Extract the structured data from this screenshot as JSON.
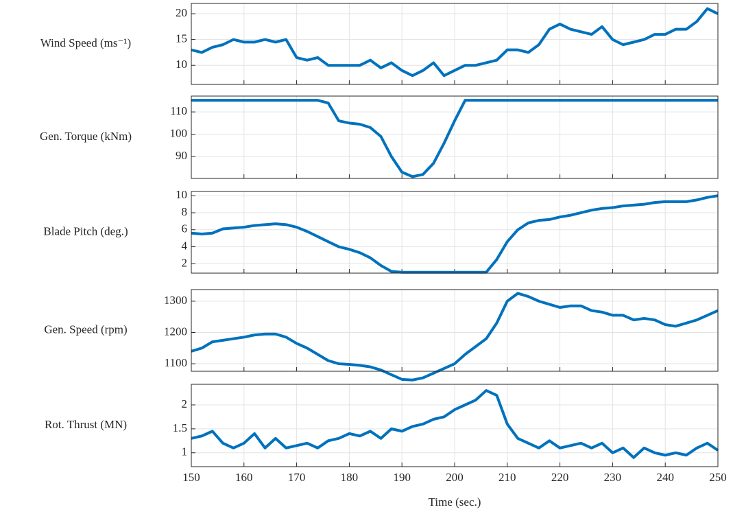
{
  "chart_data": [
    {
      "type": "line",
      "ylabel": "Wind Speed (ms⁻¹)",
      "color": "#0072BD",
      "grid": true,
      "xlim": [
        150,
        250
      ],
      "xticks": [
        150,
        160,
        170,
        180,
        190,
        200,
        210,
        220,
        230,
        240,
        250
      ],
      "ylim": [
        6.3,
        22
      ],
      "yticks": [
        10,
        15,
        20
      ],
      "x": [
        150,
        152,
        154,
        156,
        158,
        160,
        162,
        164,
        166,
        168,
        170,
        172,
        174,
        176,
        178,
        180,
        182,
        184,
        186,
        188,
        190,
        192,
        194,
        196,
        198,
        200,
        202,
        204,
        206,
        208,
        210,
        212,
        214,
        216,
        218,
        220,
        222,
        224,
        226,
        228,
        230,
        232,
        234,
        236,
        238,
        240,
        242,
        244,
        246,
        248,
        250
      ],
      "values": [
        13,
        12.5,
        13.5,
        14,
        15,
        14.5,
        14.5,
        15,
        14.5,
        15,
        11.5,
        11,
        11.5,
        10,
        10,
        10,
        10,
        11,
        9.5,
        10.5,
        9,
        8,
        9,
        10.5,
        8,
        9,
        10,
        10,
        10.5,
        11,
        13,
        13,
        12.5,
        14,
        17,
        18,
        17,
        16.5,
        16,
        17.5,
        15,
        14,
        14.5,
        15,
        16,
        16,
        17,
        17,
        18.5,
        21,
        20
      ]
    },
    {
      "type": "line",
      "ylabel": "Gen. Torque (kNm)",
      "color": "#0072BD",
      "grid": true,
      "xlim": [
        150,
        250
      ],
      "xticks": [
        150,
        160,
        170,
        180,
        190,
        200,
        210,
        220,
        230,
        240,
        250
      ],
      "ylim": [
        80.2,
        117.1
      ],
      "yticks": [
        90,
        100,
        110
      ],
      "x": [
        150,
        152,
        154,
        156,
        158,
        160,
        162,
        164,
        166,
        168,
        170,
        172,
        174,
        176,
        178,
        180,
        182,
        184,
        186,
        188,
        190,
        192,
        194,
        196,
        198,
        200,
        202,
        204,
        206,
        208,
        210,
        212,
        214,
        216,
        218,
        220,
        222,
        224,
        226,
        228,
        230,
        232,
        234,
        236,
        238,
        240,
        242,
        244,
        246,
        248,
        250
      ],
      "values": [
        115.2,
        115.2,
        115.2,
        115.2,
        115.2,
        115.2,
        115.2,
        115.2,
        115.2,
        115.2,
        115.2,
        115.2,
        115.2,
        114,
        106,
        105,
        104.5,
        103,
        99,
        90,
        83,
        81,
        82,
        87,
        96,
        106,
        115.2,
        115.2,
        115.2,
        115.2,
        115.2,
        115.2,
        115.2,
        115.2,
        115.2,
        115.2,
        115.2,
        115.2,
        115.2,
        115.2,
        115.2,
        115.2,
        115.2,
        115.2,
        115.2,
        115.2,
        115.2,
        115.2,
        115.2,
        115.2,
        115.2
      ]
    },
    {
      "type": "line",
      "ylabel": "Blade Pitch (deg.)",
      "color": "#0072BD",
      "grid": true,
      "xlim": [
        150,
        250
      ],
      "xticks": [
        150,
        160,
        170,
        180,
        190,
        200,
        210,
        220,
        230,
        240,
        250
      ],
      "ylim": [
        0.9,
        10.5
      ],
      "yticks": [
        2,
        4,
        6,
        8,
        10
      ],
      "x": [
        150,
        152,
        154,
        156,
        158,
        160,
        162,
        164,
        166,
        168,
        170,
        172,
        174,
        176,
        178,
        180,
        182,
        184,
        186,
        188,
        190,
        192,
        194,
        196,
        198,
        200,
        202,
        204,
        206,
        208,
        210,
        212,
        214,
        216,
        218,
        220,
        222,
        224,
        226,
        228,
        230,
        232,
        234,
        236,
        238,
        240,
        242,
        244,
        246,
        248,
        250
      ],
      "values": [
        5.6,
        5.5,
        5.6,
        6.1,
        6.2,
        6.3,
        6.5,
        6.6,
        6.7,
        6.6,
        6.3,
        5.8,
        5.2,
        4.6,
        4.0,
        3.7,
        3.3,
        2.7,
        1.8,
        1.1,
        1.0,
        1.0,
        1.0,
        1.0,
        1.0,
        1.0,
        1.0,
        1.0,
        1.0,
        2.5,
        4.6,
        6.0,
        6.8,
        7.1,
        7.2,
        7.5,
        7.7,
        8.0,
        8.3,
        8.5,
        8.6,
        8.8,
        8.9,
        9.0,
        9.2,
        9.3,
        9.3,
        9.3,
        9.5,
        9.8,
        10.0
      ]
    },
    {
      "type": "line",
      "ylabel": "Gen. Speed (rpm)",
      "color": "#0072BD",
      "grid": true,
      "xlim": [
        150,
        250
      ],
      "xticks": [
        150,
        160,
        170,
        180,
        190,
        200,
        210,
        220,
        230,
        240,
        250
      ],
      "ylim": [
        1076,
        1337
      ],
      "yticks": [
        1100,
        1200,
        1300
      ],
      "x": [
        150,
        152,
        154,
        156,
        158,
        160,
        162,
        164,
        166,
        168,
        170,
        172,
        174,
        176,
        178,
        180,
        182,
        184,
        186,
        188,
        190,
        192,
        194,
        196,
        198,
        200,
        202,
        204,
        206,
        208,
        210,
        212,
        214,
        216,
        218,
        220,
        222,
        224,
        226,
        228,
        230,
        232,
        234,
        236,
        238,
        240,
        242,
        244,
        246,
        248,
        250
      ],
      "values": [
        1140,
        1150,
        1170,
        1175,
        1180,
        1185,
        1192,
        1195,
        1195,
        1185,
        1165,
        1150,
        1130,
        1110,
        1100,
        1098,
        1095,
        1090,
        1080,
        1065,
        1050,
        1048,
        1055,
        1070,
        1085,
        1100,
        1130,
        1155,
        1180,
        1230,
        1300,
        1325,
        1315,
        1300,
        1290,
        1280,
        1285,
        1285,
        1270,
        1265,
        1255,
        1255,
        1240,
        1245,
        1240,
        1225,
        1220,
        1230,
        1240,
        1255,
        1270
      ]
    },
    {
      "type": "line",
      "ylabel": "Rot. Thrust (MN)",
      "xlabel": "Time (sec.)",
      "color": "#0072BD",
      "grid": true,
      "xlim": [
        150,
        250
      ],
      "xticks": [
        150,
        160,
        170,
        180,
        190,
        200,
        210,
        220,
        230,
        240,
        250
      ],
      "ylim": [
        0.71,
        2.43
      ],
      "yticks": [
        1,
        1.5,
        2
      ],
      "x": [
        150,
        152,
        154,
        156,
        158,
        160,
        162,
        164,
        166,
        168,
        170,
        172,
        174,
        176,
        178,
        180,
        182,
        184,
        186,
        188,
        190,
        192,
        194,
        196,
        198,
        200,
        202,
        204,
        206,
        208,
        210,
        212,
        214,
        216,
        218,
        220,
        222,
        224,
        226,
        228,
        230,
        232,
        234,
        236,
        238,
        240,
        242,
        244,
        246,
        248,
        250
      ],
      "values": [
        1.3,
        1.35,
        1.45,
        1.2,
        1.1,
        1.2,
        1.4,
        1.1,
        1.3,
        1.1,
        1.15,
        1.2,
        1.1,
        1.25,
        1.3,
        1.4,
        1.35,
        1.45,
        1.3,
        1.5,
        1.45,
        1.55,
        1.6,
        1.7,
        1.75,
        1.9,
        2.0,
        2.1,
        2.3,
        2.2,
        1.6,
        1.3,
        1.2,
        1.1,
        1.25,
        1.1,
        1.15,
        1.2,
        1.1,
        1.2,
        1.0,
        1.1,
        0.9,
        1.1,
        1.0,
        0.95,
        1.0,
        0.95,
        1.1,
        1.2,
        1.05
      ]
    }
  ]
}
